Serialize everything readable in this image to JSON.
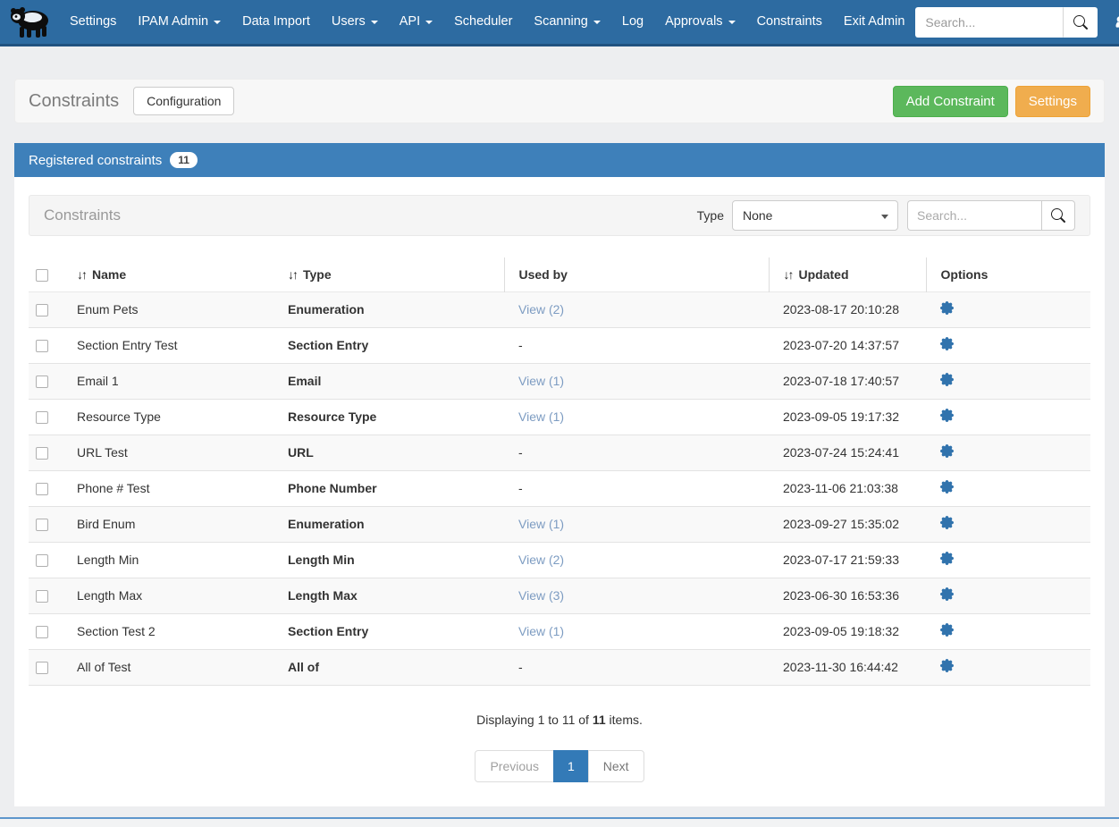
{
  "navbar": {
    "items": [
      {
        "label": "Settings",
        "dropdown": false
      },
      {
        "label": "IPAM Admin",
        "dropdown": true
      },
      {
        "label": "Data Import",
        "dropdown": false
      },
      {
        "label": "Users",
        "dropdown": true
      },
      {
        "label": "API",
        "dropdown": true
      },
      {
        "label": "Scheduler",
        "dropdown": false
      },
      {
        "label": "Scanning",
        "dropdown": true
      },
      {
        "label": "Log",
        "dropdown": false
      },
      {
        "label": "Approvals",
        "dropdown": true
      },
      {
        "label": "Constraints",
        "dropdown": false
      },
      {
        "label": "Exit Admin",
        "dropdown": false
      }
    ],
    "search_placeholder": "Search...",
    "icons": {
      "logo": "panda-logo",
      "search": "search-icon",
      "user": "user-icon"
    }
  },
  "page_header": {
    "title": "Constraints",
    "configuration_button": "Configuration",
    "add_constraint_button": "Add Constraint",
    "settings_button": "Settings"
  },
  "panel": {
    "title": "Registered constraints",
    "count_badge": "11"
  },
  "toolbar": {
    "title": "Constraints",
    "type_label": "Type",
    "type_selected": "None",
    "search_placeholder": "Search..."
  },
  "table": {
    "columns": [
      {
        "label": "Name",
        "sortable": true
      },
      {
        "label": "Type",
        "sortable": true
      },
      {
        "label": "Used by",
        "sortable": false
      },
      {
        "label": "Updated",
        "sortable": true
      },
      {
        "label": "Options",
        "sortable": false
      }
    ],
    "rows": [
      {
        "name": "Enum Pets",
        "type": "Enumeration",
        "used_by": "View (2)",
        "used_by_link": true,
        "updated": "2023-08-17 20:10:28"
      },
      {
        "name": "Section Entry Test",
        "type": "Section Entry",
        "used_by": "-",
        "used_by_link": false,
        "updated": "2023-07-20 14:37:57"
      },
      {
        "name": "Email 1",
        "type": "Email",
        "used_by": "View (1)",
        "used_by_link": true,
        "updated": "2023-07-18 17:40:57"
      },
      {
        "name": "Resource Type",
        "type": "Resource Type",
        "used_by": "View (1)",
        "used_by_link": true,
        "updated": "2023-09-05 19:17:32"
      },
      {
        "name": "URL Test",
        "type": "URL",
        "used_by": "-",
        "used_by_link": false,
        "updated": "2023-07-24 15:24:41"
      },
      {
        "name": "Phone # Test",
        "type": "Phone Number",
        "used_by": "-",
        "used_by_link": false,
        "updated": "2023-11-06 21:03:38"
      },
      {
        "name": "Bird Enum",
        "type": "Enumeration",
        "used_by": "View (1)",
        "used_by_link": true,
        "updated": "2023-09-27 15:35:02"
      },
      {
        "name": "Length Min",
        "type": "Length Min",
        "used_by": "View (2)",
        "used_by_link": true,
        "updated": "2023-07-17 21:59:33"
      },
      {
        "name": "Length Max",
        "type": "Length Max",
        "used_by": "View (3)",
        "used_by_link": true,
        "updated": "2023-06-30 16:53:36"
      },
      {
        "name": "Section Test 2",
        "type": "Section Entry",
        "used_by": "View (1)",
        "used_by_link": true,
        "updated": "2023-09-05 19:18:32"
      },
      {
        "name": "All of Test",
        "type": "All of",
        "used_by": "-",
        "used_by_link": false,
        "updated": "2023-11-30 16:44:42"
      }
    ]
  },
  "footer": {
    "summary_prefix": "Displaying 1 to 11 of ",
    "summary_count": "11",
    "summary_suffix": " items.",
    "pagination": {
      "previous": "Previous",
      "current_page": "1",
      "next": "Next"
    }
  },
  "colors": {
    "navbar_blue": "#2d6ba1",
    "panel_header_blue": "#3e80ba",
    "success_green": "#5cb85c",
    "warning_orange": "#f0ad4e",
    "active_page_blue": "#337ab7",
    "link_blue": "#7d9cc2",
    "gear_blue": "#3173ad"
  }
}
